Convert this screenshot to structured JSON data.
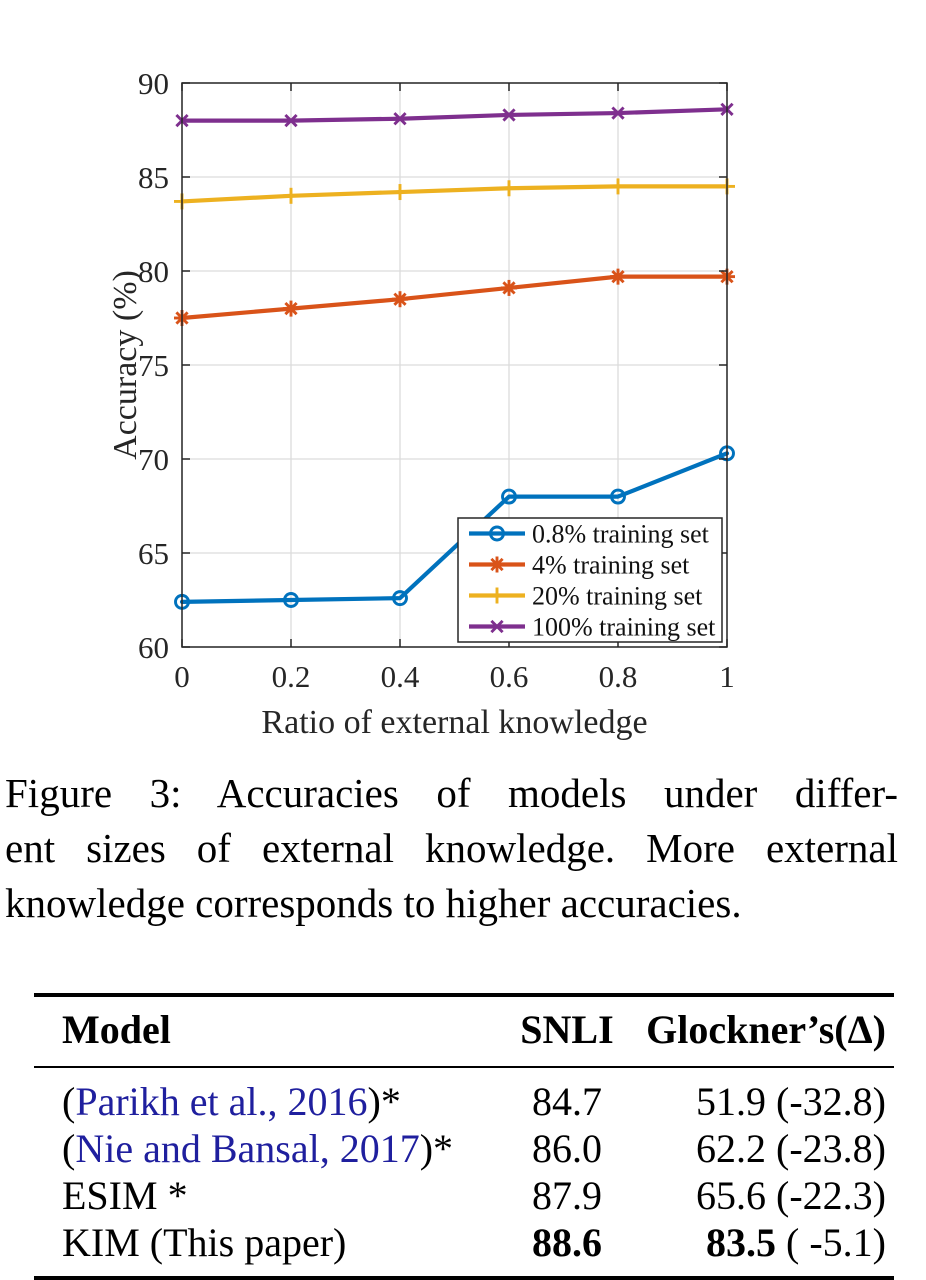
{
  "accent_colors": {
    "citation_link": "#1f1f9e",
    "axis": "#262626",
    "grid": "#dcdcdc"
  },
  "chart_data": {
    "type": "line",
    "title": "",
    "xlabel": "Ratio of external knowledge",
    "ylabel": "Accuracy (%)",
    "xlim": [
      0,
      1
    ],
    "ylim": [
      60,
      90
    ],
    "xticks": [
      0,
      0.2,
      0.4,
      0.6,
      0.8,
      1
    ],
    "xtick_labels": [
      "0",
      "0.2",
      "0.4",
      "0.6",
      "0.8",
      "1"
    ],
    "yticks": [
      60,
      65,
      70,
      75,
      80,
      85,
      90
    ],
    "ytick_labels": [
      "60",
      "65",
      "70",
      "75",
      "80",
      "85",
      "90"
    ],
    "grid": true,
    "legend_position": "inside-lower-right",
    "x": [
      0,
      0.2,
      0.4,
      0.6,
      0.8,
      1
    ],
    "series": [
      {
        "name": "0.8% training set",
        "marker": "circle",
        "color": "#0072BD",
        "values": [
          62.4,
          62.5,
          62.6,
          68.0,
          68.0,
          70.3
        ]
      },
      {
        "name": "4% training set",
        "marker": "asterisk",
        "color": "#D95319",
        "values": [
          77.5,
          78.0,
          78.5,
          79.1,
          79.7,
          79.7
        ]
      },
      {
        "name": "20% training set",
        "marker": "plus",
        "color": "#EDB120",
        "values": [
          83.7,
          84.0,
          84.2,
          84.4,
          84.5,
          84.5
        ]
      },
      {
        "name": "100% training set",
        "marker": "x",
        "color": "#7E2F8E",
        "values": [
          88.0,
          88.0,
          88.1,
          88.3,
          88.4,
          88.6
        ]
      }
    ]
  },
  "caption": {
    "lines": [
      "Figure 3: Accuracies of models under differ-",
      "ent sizes of external knowledge. More external",
      "knowledge corresponds to higher accuracies."
    ]
  },
  "table": {
    "headers": [
      "Model",
      "SNLI",
      "Glockner’s(Δ)"
    ],
    "rows": [
      {
        "model": {
          "pre": "(",
          "link": "Parikh et al., 2016",
          "post": ")*"
        },
        "snli": "84.7",
        "glockner_val": "51.9",
        "glockner_delta": "(-32.8)",
        "bold": false
      },
      {
        "model": {
          "pre": "(",
          "link": "Nie and Bansal, 2017",
          "post": ")*"
        },
        "snli": "86.0",
        "glockner_val": "62.2",
        "glockner_delta": "(-23.8)",
        "bold": false
      },
      {
        "model": {
          "text": "ESIM *"
        },
        "snli": "87.9",
        "glockner_val": "65.6",
        "glockner_delta": "(-22.3)",
        "bold": false
      },
      {
        "model": {
          "text": "KIM (This paper)"
        },
        "snli": "88.6",
        "glockner_val": "83.5",
        "glockner_delta": "( -5.1)",
        "bold": true
      }
    ]
  }
}
